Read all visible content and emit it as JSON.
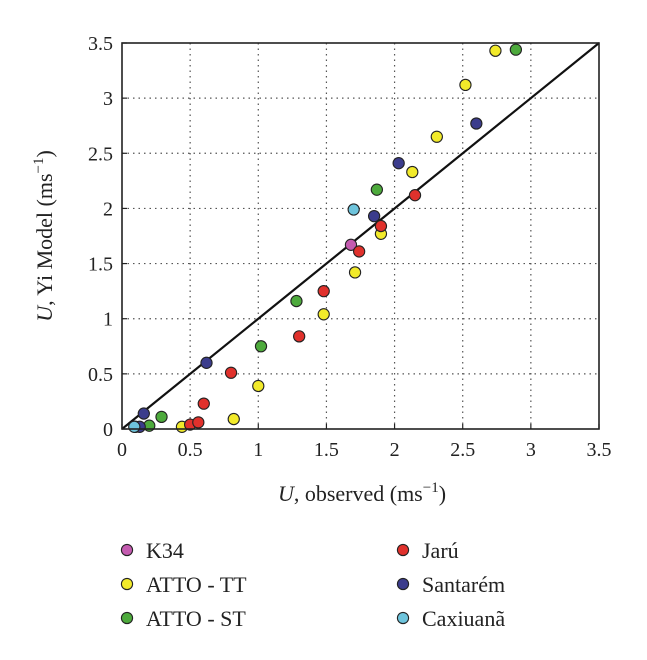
{
  "chart_data": {
    "type": "scatter",
    "xlabel": {
      "var": "U",
      "text": ", observed (ms",
      "sup": "−1",
      "close": ")"
    },
    "ylabel": {
      "var": "U",
      "text": ", Yi Model (ms",
      "sup": "−1",
      "close": ")"
    },
    "xlim": [
      0,
      3.5
    ],
    "ylim": [
      0,
      3.5
    ],
    "xticks": [
      "0",
      "0.5",
      "1",
      "1.5",
      "2",
      "2.5",
      "3",
      "3.5"
    ],
    "yticks": [
      "0",
      "0.5",
      "1",
      "1.5",
      "2",
      "2.5",
      "3",
      "3.5"
    ],
    "grid": "dotted",
    "reference_line": {
      "x": [
        0,
        3.5
      ],
      "y": [
        0,
        3.5
      ]
    },
    "legend_position": "below",
    "series": [
      {
        "name": "K34",
        "color": "#c45bb0",
        "points": [
          [
            1.68,
            1.67
          ],
          [
            0.1,
            0.02
          ]
        ]
      },
      {
        "name": "ATTO - TT",
        "color": "#f2ea2a",
        "points": [
          [
            0.44,
            0.02
          ],
          [
            0.82,
            0.09
          ],
          [
            1.0,
            0.39
          ],
          [
            1.48,
            1.04
          ],
          [
            1.71,
            1.42
          ],
          [
            1.9,
            1.77
          ],
          [
            2.13,
            2.33
          ],
          [
            2.31,
            2.65
          ],
          [
            2.52,
            3.12
          ],
          [
            2.74,
            3.43
          ]
        ]
      },
      {
        "name": "ATTO - ST",
        "color": "#4daa3c",
        "points": [
          [
            0.2,
            0.03
          ],
          [
            0.29,
            0.11
          ],
          [
            1.02,
            0.75
          ],
          [
            1.28,
            1.16
          ],
          [
            1.87,
            2.17
          ],
          [
            2.89,
            3.44
          ]
        ]
      },
      {
        "name": "Jarú",
        "color": "#e0312c",
        "points": [
          [
            0.5,
            0.04
          ],
          [
            0.56,
            0.06
          ],
          [
            0.6,
            0.23
          ],
          [
            0.8,
            0.51
          ],
          [
            1.3,
            0.84
          ],
          [
            1.48,
            1.25
          ],
          [
            1.74,
            1.61
          ],
          [
            1.9,
            1.84
          ],
          [
            2.15,
            2.12
          ]
        ]
      },
      {
        "name": "Santarém",
        "color": "#3b3c8c",
        "points": [
          [
            0.13,
            0.02
          ],
          [
            0.16,
            0.14
          ],
          [
            0.62,
            0.6
          ],
          [
            1.85,
            1.93
          ],
          [
            2.03,
            2.41
          ],
          [
            2.6,
            2.77
          ]
        ]
      },
      {
        "name": "Caxiuanã",
        "color": "#6ec4dc",
        "points": [
          [
            1.7,
            1.99
          ],
          [
            0.09,
            0.02
          ]
        ]
      }
    ]
  }
}
